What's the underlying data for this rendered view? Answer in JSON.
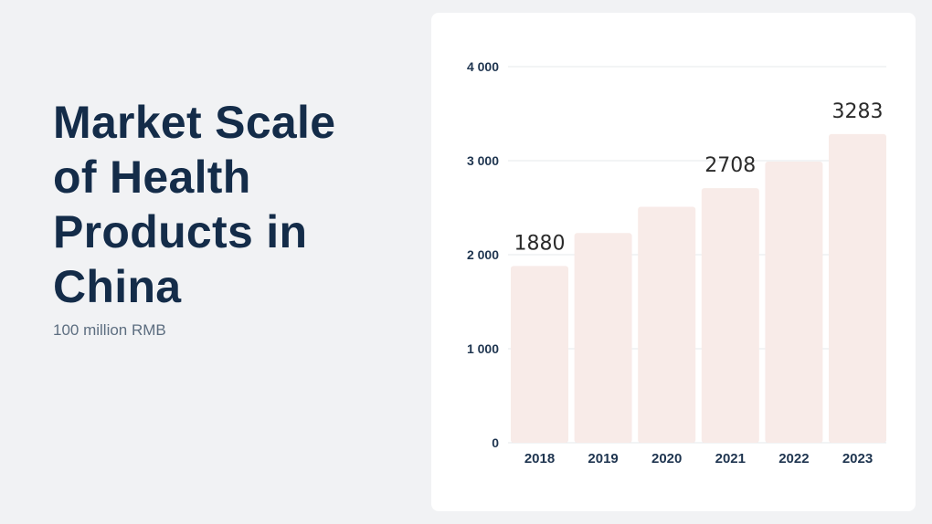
{
  "title": "Market Scale of Health Products in China",
  "subtitle": "100 million RMB",
  "colors": {
    "background": "#f1f2f4",
    "card": "#ffffff",
    "title": "#142c49",
    "subtitle": "#5d6e80",
    "bar": "#f8ebe8",
    "gridline": "#e6e8eb",
    "tick_label": "#1f3550",
    "data_label": "#2b2b2b"
  },
  "chart_data": {
    "type": "bar",
    "categories": [
      "2018",
      "2019",
      "2020",
      "2021",
      "2022",
      "2023"
    ],
    "values": [
      1880,
      2230,
      2510,
      2708,
      2990,
      3283
    ],
    "data_labels": [
      "1880",
      "",
      "",
      "2708",
      "",
      "3283"
    ],
    "title": "",
    "xlabel": "",
    "ylabel": "",
    "ylim": [
      0,
      4000
    ],
    "yticks": [
      0,
      1000,
      2000,
      3000,
      4000
    ],
    "ytick_labels": [
      "0",
      "1 000",
      "2 000",
      "3 000",
      "4 000"
    ],
    "grid": true,
    "legend": "none"
  }
}
